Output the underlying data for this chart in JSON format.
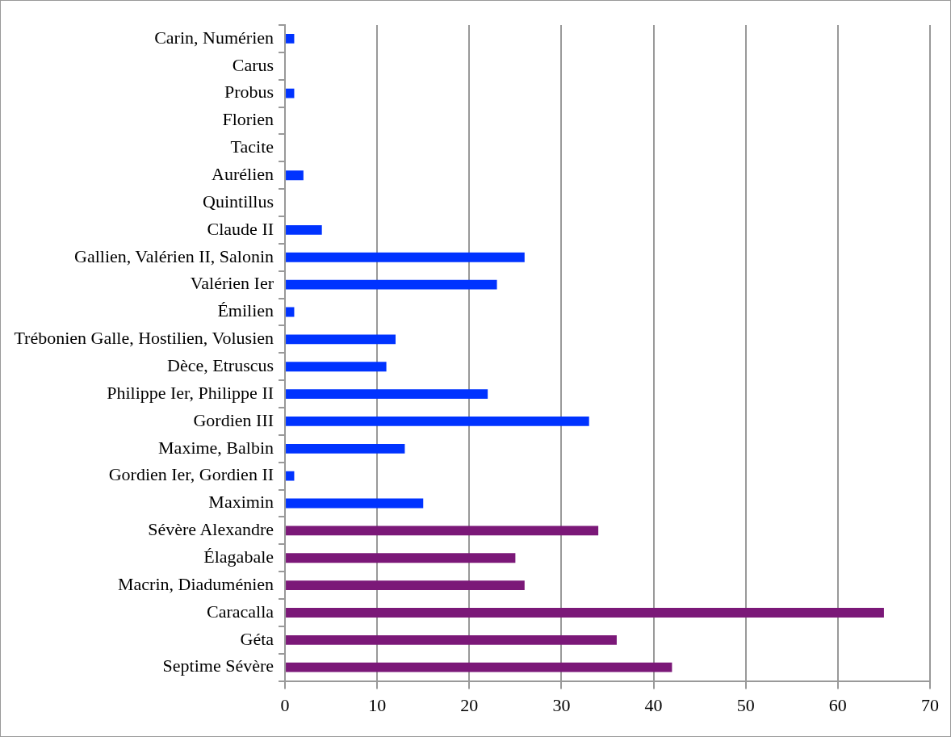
{
  "chart_data": {
    "type": "bar",
    "orientation": "horizontal",
    "categories": [
      "Carin, Numérien",
      "Carus",
      "Probus",
      "Florien",
      "Tacite",
      "Aurélien",
      "Quintillus",
      "Claude II",
      "Gallien, Valérien II, Salonin",
      "Valérien Ier",
      "Émilien",
      "Trébonien Galle, Hostilien, Volusien",
      "Dèce, Etruscus",
      "Philippe Ier, Philippe II",
      "Gordien III",
      "Maxime, Balbin",
      "Gordien Ier, Gordien II",
      "Maximin",
      "Sévère Alexandre",
      "Élagabale",
      "Macrin, Diaduménien",
      "Caracalla",
      "Géta",
      "Septime Sévère"
    ],
    "values": [
      1,
      0,
      1,
      0,
      0,
      2,
      0,
      4,
      26,
      23,
      1,
      12,
      11,
      22,
      33,
      13,
      1,
      15,
      34,
      25,
      26,
      65,
      36,
      42
    ],
    "colors": [
      "#0033ff",
      "#0033ff",
      "#0033ff",
      "#0033ff",
      "#0033ff",
      "#0033ff",
      "#0033ff",
      "#0033ff",
      "#0033ff",
      "#0033ff",
      "#0033ff",
      "#0033ff",
      "#0033ff",
      "#0033ff",
      "#0033ff",
      "#0033ff",
      "#0033ff",
      "#0033ff",
      "#7b1878",
      "#7b1878",
      "#7b1878",
      "#7b1878",
      "#7b1878",
      "#7b1878"
    ],
    "xlim": [
      0,
      70
    ],
    "xticks": [
      0,
      10,
      20,
      30,
      40,
      50,
      60,
      70
    ],
    "grid": "x",
    "legend": false
  }
}
